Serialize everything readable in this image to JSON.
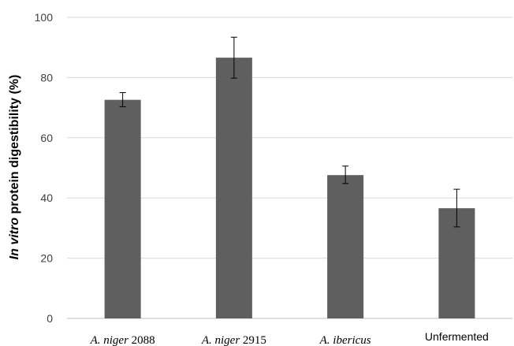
{
  "chart_data": {
    "type": "bar",
    "categories": [
      {
        "italic": "A. niger",
        "plain": "2088"
      },
      {
        "italic": "A. niger",
        "plain": "2915"
      },
      {
        "italic": "A. ibericus",
        "plain": ""
      },
      {
        "italic": "",
        "plain": "Unfermented"
      }
    ],
    "values": [
      72.6,
      86.6,
      47.6,
      36.6
    ],
    "error_low": [
      70.3,
      79.8,
      44.8,
      30.4
    ],
    "error_high": [
      75.0,
      93.4,
      50.6,
      42.9
    ],
    "ylabel_italic": "In vitro",
    "ylabel_rest": " protein digestibility (%)",
    "xlabel": "",
    "ylim": [
      0,
      100
    ],
    "yticks": [
      "0",
      "20",
      "40",
      "60",
      "80",
      "100"
    ],
    "grid": true,
    "bar_color": "#5f5f5f",
    "grid_color": "#d9d9d9"
  }
}
